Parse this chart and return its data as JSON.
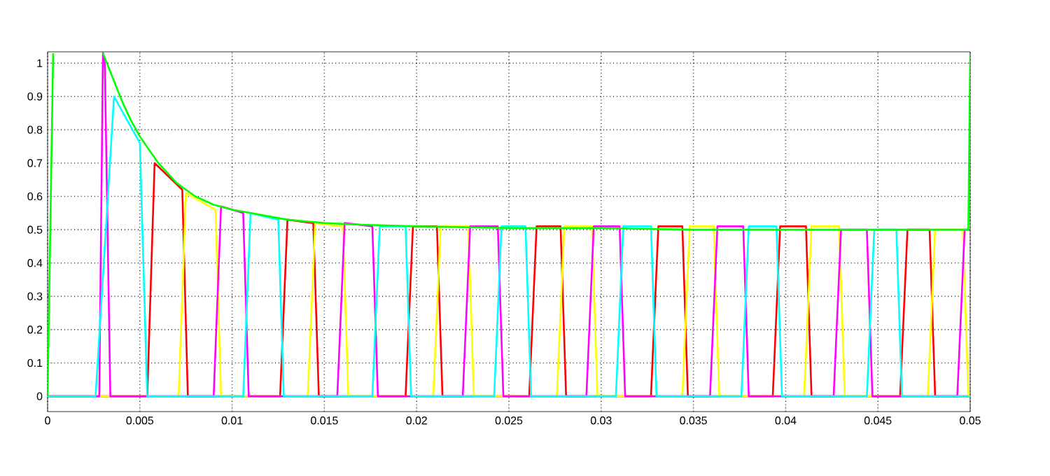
{
  "chart_data": {
    "type": "line",
    "xlim": [
      0,
      0.05
    ],
    "ylim": [
      -0.046,
      1.034
    ],
    "xticks": [
      0,
      0.005,
      0.01,
      0.015,
      0.02,
      0.025,
      0.03,
      0.035,
      0.04,
      0.045,
      0.05
    ],
    "yticks": [
      0,
      0.1,
      0.2,
      0.3,
      0.4,
      0.5,
      0.6,
      0.7,
      0.8,
      0.9,
      1
    ],
    "grid": true,
    "series": [
      {
        "color": "#ff0000",
        "x": [
          0,
          0.0054,
          0.0058,
          0.0073,
          0.0076,
          0.0126,
          0.013,
          0.0144,
          0.0147,
          0.0194,
          0.0198,
          0.0211,
          0.0214,
          0.0261,
          0.0265,
          0.0278,
          0.0281,
          0.0327,
          0.0331,
          0.0344,
          0.0347,
          0.0393,
          0.0397,
          0.0411,
          0.0414,
          0.0462,
          0.0466,
          0.0478,
          0.0481,
          0.05
        ],
        "values": [
          0,
          0,
          0.7,
          0.62,
          0,
          0,
          0.53,
          0.52,
          0,
          0,
          0.51,
          0.51,
          0,
          0,
          0.51,
          0.51,
          0,
          0,
          0.51,
          0.51,
          0,
          0,
          0.51,
          0.51,
          0,
          0,
          0.5,
          0.5,
          0,
          0
        ]
      },
      {
        "color": "#ffff00",
        "x": [
          0,
          0.0071,
          0.0075,
          0.0091,
          0.0094,
          0.0141,
          0.0145,
          0.016,
          0.0163,
          0.0209,
          0.0213,
          0.0228,
          0.0231,
          0.0276,
          0.028,
          0.0295,
          0.0298,
          0.0344,
          0.0348,
          0.0361,
          0.0364,
          0.041,
          0.0414,
          0.0429,
          0.0432,
          0.0477,
          0.0481,
          0.0496,
          0.0499,
          0.05
        ],
        "values": [
          0,
          0,
          0.61,
          0.56,
          0,
          0,
          0.52,
          0.51,
          0,
          0,
          0.51,
          0.51,
          0,
          0,
          0.51,
          0.51,
          0,
          0,
          0.51,
          0.51,
          0,
          0,
          0.51,
          0.51,
          0,
          0,
          0.5,
          0.5,
          0,
          0
        ]
      },
      {
        "color": "#ff00ff",
        "x": [
          0,
          0.0028,
          0.003,
          0.0031,
          0.0034,
          0.009,
          0.0094,
          0.0106,
          0.0109,
          0.0157,
          0.0161,
          0.0176,
          0.0179,
          0.0225,
          0.0229,
          0.0244,
          0.0247,
          0.0292,
          0.0296,
          0.031,
          0.0313,
          0.0359,
          0.0363,
          0.0377,
          0.038,
          0.0426,
          0.043,
          0.0444,
          0.0447,
          0.0493,
          0.0497,
          0.05
        ],
        "values": [
          0,
          0,
          1.03,
          1.0,
          0,
          0,
          0.57,
          0.55,
          0,
          0,
          0.52,
          0.51,
          0,
          0,
          0.51,
          0.51,
          0,
          0,
          0.51,
          0.51,
          0,
          0,
          0.51,
          0.51,
          0,
          0,
          0.5,
          0.5,
          0,
          0,
          0.5,
          0.5
        ]
      },
      {
        "color": "#00ffff",
        "x": [
          0,
          0.0026,
          0.0036,
          0.005,
          0.0054,
          0.0106,
          0.011,
          0.0125,
          0.0128,
          0.0176,
          0.018,
          0.0194,
          0.0197,
          0.0242,
          0.0246,
          0.0259,
          0.0262,
          0.0308,
          0.0312,
          0.0327,
          0.033,
          0.0376,
          0.038,
          0.0395,
          0.0398,
          0.0444,
          0.0448,
          0.046,
          0.0463,
          0.05
        ],
        "values": [
          0,
          0,
          0.9,
          0.76,
          0,
          0,
          0.55,
          0.53,
          0,
          0,
          0.51,
          0.51,
          0,
          0,
          0.51,
          0.51,
          0,
          0,
          0.51,
          0.51,
          0,
          0,
          0.51,
          0.51,
          0,
          0,
          0.5,
          0.5,
          0,
          0
        ]
      },
      {
        "color": "#00ff00",
        "x": [
          0,
          0.0003,
          0.0004,
          0.003,
          0.0035,
          0.004,
          0.0045,
          0.005,
          0.006,
          0.007,
          0.008,
          0.009,
          0.01,
          0.011,
          0.012,
          0.013,
          0.014,
          0.015,
          0.017,
          0.02,
          0.025,
          0.03,
          0.035,
          0.04,
          0.045,
          0.0499,
          0.05
        ],
        "values": [
          0,
          1.03,
          null,
          1.03,
          0.96,
          0.89,
          0.83,
          0.78,
          0.7,
          0.64,
          0.6,
          0.575,
          0.56,
          0.55,
          0.54,
          0.53,
          0.525,
          0.52,
          0.515,
          0.51,
          0.505,
          0.505,
          0.5,
          0.5,
          0.5,
          0.5,
          1.03
        ]
      }
    ]
  }
}
